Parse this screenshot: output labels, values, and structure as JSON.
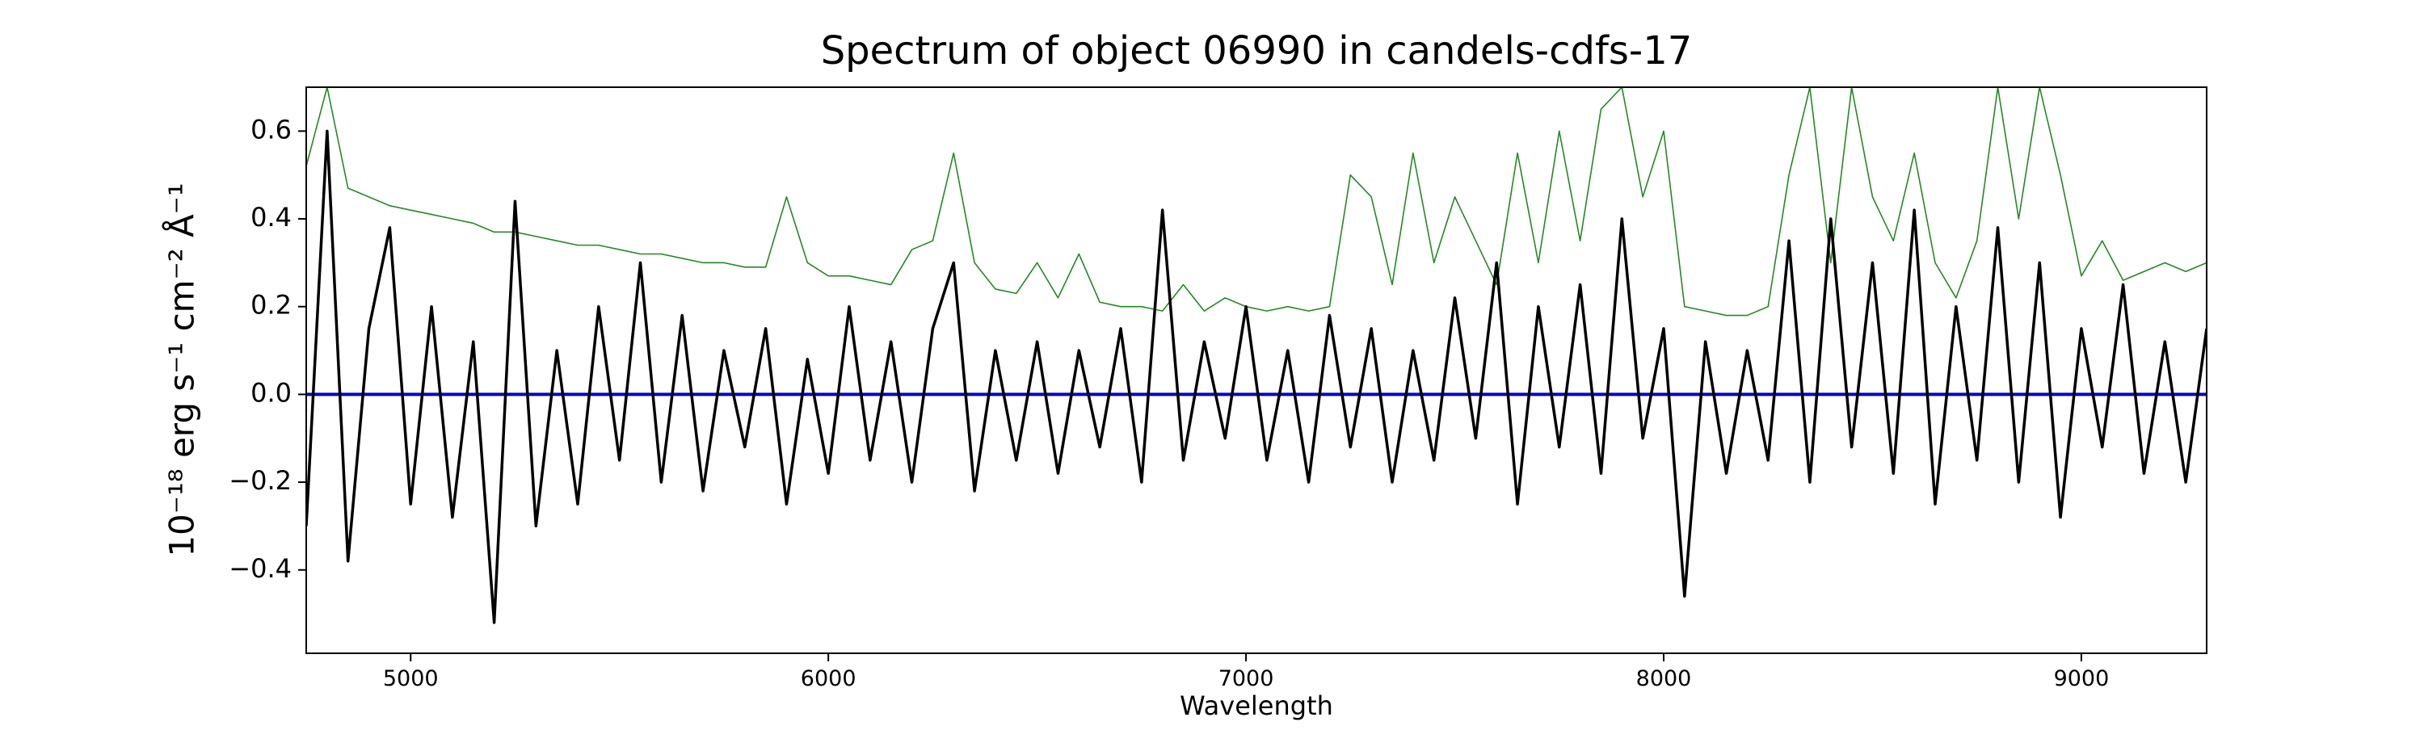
{
  "chart_data": {
    "type": "line",
    "title": "Spectrum of object 06990 in candels-cdfs-17",
    "xlabel": "Wavelength",
    "ylabel": "10⁻¹⁸ erg s⁻¹ cm⁻² Å⁻¹",
    "x": [
      4750,
      4800,
      4850,
      4900,
      4950,
      5000,
      5050,
      5100,
      5150,
      5200,
      5250,
      5300,
      5350,
      5400,
      5450,
      5500,
      5550,
      5600,
      5650,
      5700,
      5750,
      5800,
      5850,
      5900,
      5950,
      6000,
      6050,
      6100,
      6150,
      6200,
      6250,
      6300,
      6350,
      6400,
      6450,
      6500,
      6550,
      6600,
      6650,
      6700,
      6750,
      6800,
      6850,
      6900,
      6950,
      7000,
      7050,
      7100,
      7150,
      7200,
      7250,
      7300,
      7350,
      7400,
      7450,
      7500,
      7550,
      7600,
      7650,
      7700,
      7750,
      7800,
      7850,
      7900,
      7950,
      8000,
      8050,
      8100,
      8150,
      8200,
      8250,
      8300,
      8350,
      8400,
      8450,
      8500,
      8550,
      8600,
      8650,
      8700,
      8750,
      8800,
      8850,
      8900,
      8950,
      9000,
      9050,
      9100,
      9150,
      9200,
      9250,
      9300
    ],
    "series": [
      {
        "color": "#228b22",
        "width": 1.6,
        "values": [
          0.52,
          0.7,
          0.47,
          0.45,
          0.43,
          0.42,
          0.41,
          0.4,
          0.39,
          0.37,
          0.37,
          0.36,
          0.35,
          0.34,
          0.34,
          0.33,
          0.32,
          0.32,
          0.31,
          0.3,
          0.3,
          0.29,
          0.29,
          0.45,
          0.3,
          0.27,
          0.27,
          0.26,
          0.25,
          0.33,
          0.35,
          0.55,
          0.3,
          0.24,
          0.23,
          0.3,
          0.22,
          0.32,
          0.21,
          0.2,
          0.2,
          0.19,
          0.25,
          0.19,
          0.22,
          0.2,
          0.19,
          0.2,
          0.19,
          0.2,
          0.5,
          0.45,
          0.25,
          0.55,
          0.3,
          0.45,
          0.35,
          0.25,
          0.55,
          0.3,
          0.6,
          0.35,
          0.65,
          0.7,
          0.45,
          0.6,
          0.2,
          0.19,
          0.18,
          0.18,
          0.2,
          0.5,
          0.7,
          0.3,
          0.7,
          0.45,
          0.35,
          0.55,
          0.3,
          0.22,
          0.35,
          0.7,
          0.4,
          0.7,
          0.5,
          0.27,
          0.35,
          0.26,
          0.28,
          0.3,
          0.28,
          0.3
        ]
      },
      {
        "color": "#000000",
        "width": 3.5,
        "values": [
          -0.3,
          0.6,
          -0.38,
          0.15,
          0.38,
          -0.25,
          0.2,
          -0.28,
          0.12,
          -0.52,
          0.44,
          -0.3,
          0.1,
          -0.25,
          0.2,
          -0.15,
          0.3,
          -0.2,
          0.18,
          -0.22,
          0.1,
          -0.12,
          0.15,
          -0.25,
          0.08,
          -0.18,
          0.2,
          -0.15,
          0.12,
          -0.2,
          0.15,
          0.3,
          -0.22,
          0.1,
          -0.15,
          0.12,
          -0.18,
          0.1,
          -0.12,
          0.15,
          -0.2,
          0.42,
          -0.15,
          0.12,
          -0.1,
          0.2,
          -0.15,
          0.1,
          -0.2,
          0.18,
          -0.12,
          0.15,
          -0.2,
          0.1,
          -0.15,
          0.22,
          -0.1,
          0.3,
          -0.25,
          0.2,
          -0.12,
          0.25,
          -0.18,
          0.4,
          -0.1,
          0.15,
          -0.46,
          0.12,
          -0.18,
          0.1,
          -0.15,
          0.35,
          -0.2,
          0.4,
          -0.12,
          0.3,
          -0.18,
          0.42,
          -0.25,
          0.2,
          -0.15,
          0.38,
          -0.2,
          0.3,
          -0.28,
          0.15,
          -0.12,
          0.25,
          -0.18,
          0.12,
          -0.2,
          0.15
        ]
      }
    ],
    "hlines": [
      {
        "y": 0,
        "color": "#0000cc"
      }
    ],
    "xlim": [
      4750,
      9300
    ],
    "ylim": [
      -0.59,
      0.7
    ],
    "xticks": [
      5000,
      6000,
      7000,
      8000,
      9000
    ],
    "yticks": [
      {
        "value": -0.4,
        "label": "−0.4"
      },
      {
        "value": -0.2,
        "label": "−0.2"
      },
      {
        "value": 0.0,
        "label": "0.0"
      },
      {
        "value": 0.2,
        "label": "0.2"
      },
      {
        "value": 0.4,
        "label": "0.4"
      },
      {
        "value": 0.6,
        "label": "0.6"
      }
    ],
    "grid": false
  }
}
